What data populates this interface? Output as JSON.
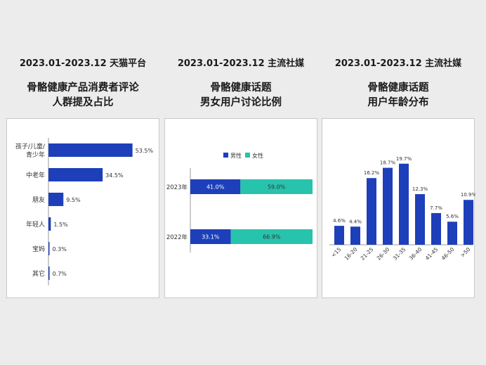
{
  "colors": {
    "blue": "#1d3fba",
    "teal": "#27c3ad",
    "axis": "#9a9a9a",
    "label": "#333333"
  },
  "panels": [
    {
      "period": "2023.01-2023.12 天猫平台",
      "title_line1": "骨骼健康产品消费者评论",
      "title_line2": "人群提及占比"
    },
    {
      "period": "2023.01-2023.12 主流社媒",
      "title_line1": "骨骼健康话题",
      "title_line2": "男女用户讨论比例"
    },
    {
      "period": "2023.01-2023.12 主流社媒",
      "title_line1": "骨骼健康话题",
      "title_line2": "用户年龄分布"
    }
  ],
  "chart_data": [
    {
      "type": "bar",
      "orientation": "horizontal",
      "categories": [
        [
          "孩子/儿童/",
          "青少年"
        ],
        [
          "中老年"
        ],
        [
          "朋友"
        ],
        [
          "年轻人"
        ],
        [
          "宝妈"
        ],
        [
          "其它"
        ]
      ],
      "values": [
        53.5,
        34.5,
        9.5,
        1.5,
        0.3,
        0.7
      ],
      "value_labels": [
        "53.5%",
        "34.5%",
        "9.5%",
        "1.5%",
        "0.3%",
        "0.7%"
      ],
      "xlim": [
        0,
        55
      ],
      "unit": "%"
    },
    {
      "type": "bar",
      "orientation": "horizontal",
      "stacked": true,
      "legend": [
        "男性",
        "女性"
      ],
      "categories": [
        "2023年",
        "2022年"
      ],
      "series": [
        {
          "name": "男性",
          "values": [
            41.0,
            33.1
          ],
          "labels": [
            "41.0%",
            "33.1%"
          ]
        },
        {
          "name": "女性",
          "values": [
            59.0,
            66.9
          ],
          "labels": [
            "59.0%",
            "66.9%"
          ]
        }
      ],
      "xlim": [
        0,
        100
      ],
      "unit": "%"
    },
    {
      "type": "bar",
      "orientation": "vertical",
      "categories": [
        "<15",
        "16-20",
        "21-25",
        "26-30",
        "31-35",
        "36-40",
        "41-45",
        "46-50",
        ">50"
      ],
      "values": [
        4.6,
        4.4,
        16.2,
        18.7,
        19.7,
        12.3,
        7.7,
        5.6,
        10.9
      ],
      "value_labels": [
        "4.6%",
        "4.4%",
        "16.2%",
        "18.7%",
        "19.7%",
        "12.3%",
        "7.7%",
        "5.6%",
        "10.9%"
      ],
      "ylim": [
        0,
        20
      ],
      "unit": "%"
    }
  ]
}
